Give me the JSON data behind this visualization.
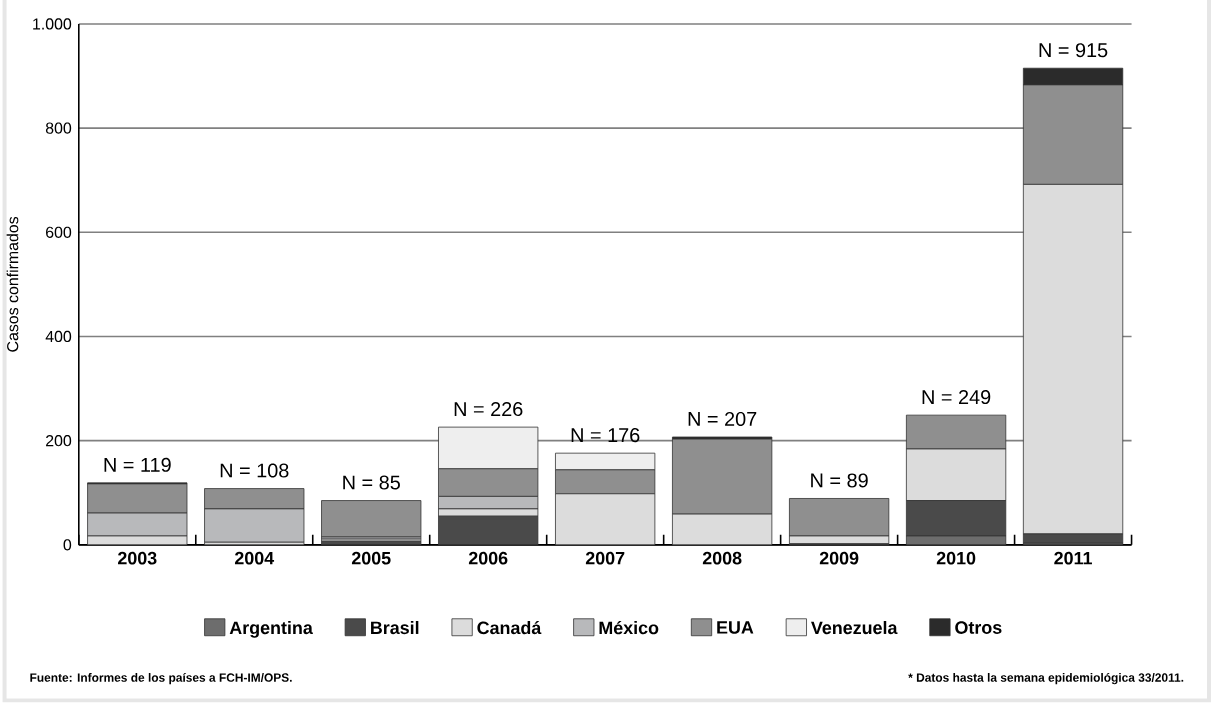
{
  "chart_data": {
    "type": "bar",
    "stacked": true,
    "ylabel": "Casos confirmados",
    "categories": [
      "2003",
      "2004",
      "2005",
      "2006",
      "2007",
      "2008",
      "2009",
      "2010",
      "2011"
    ],
    "series": [
      {
        "name": "Argentina",
        "color": "#6d6d6d",
        "values": [
          0,
          0,
          0,
          0,
          0,
          0,
          0,
          17,
          3
        ]
      },
      {
        "name": "Brasil",
        "color": "#4a4a4a",
        "values": [
          0,
          0,
          7,
          55,
          0,
          0,
          2,
          68,
          18
        ]
      },
      {
        "name": "Canadá",
        "color": "#dcdcdc",
        "values": [
          17,
          5,
          4,
          14,
          98,
          59,
          15,
          99,
          671
        ]
      },
      {
        "name": "México",
        "color": "#b8b9bb",
        "values": [
          44,
          64,
          4,
          24,
          0,
          0,
          0,
          0,
          0
        ]
      },
      {
        "name": "EUA",
        "color": "#8f8f8f",
        "values": [
          56,
          39,
          70,
          53,
          46,
          144,
          72,
          65,
          191
        ]
      },
      {
        "name": "Venezuela",
        "color": "#eeeeee",
        "values": [
          0,
          0,
          0,
          80,
          32,
          0,
          0,
          0,
          0
        ]
      },
      {
        "name": "Otros",
        "color": "#2b2b2b",
        "values": [
          2,
          0,
          0,
          0,
          0,
          4,
          0,
          0,
          32
        ]
      }
    ],
    "totals": [
      "N = 119",
      "N = 108",
      "N = 85",
      "N = 226",
      "N = 176",
      "N = 207",
      "N = 89",
      "N = 249",
      "N = 915"
    ],
    "ylim": [
      0,
      1000
    ],
    "yticks": [
      0,
      200,
      400,
      600,
      800,
      {
        "value": 1000,
        "label": "1.000"
      }
    ],
    "grid": "y",
    "legend": "bottom",
    "annotations": [
      "Fuente: Informes de los países a FCH-IM/OPS.",
      "* Datos hasta la semana epidemiológica 33/2011."
    ]
  }
}
